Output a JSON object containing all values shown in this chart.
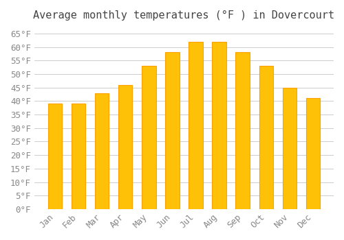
{
  "title": "Average monthly temperatures (°F ) in Dovercourt",
  "months": [
    "Jan",
    "Feb",
    "Mar",
    "Apr",
    "May",
    "Jun",
    "Jul",
    "Aug",
    "Sep",
    "Oct",
    "Nov",
    "Dec"
  ],
  "values": [
    39,
    39,
    43,
    46,
    53,
    58,
    62,
    62,
    58,
    53,
    45,
    41
  ],
  "bar_color_face": "#FFC107",
  "bar_color_edge": "#FFA000",
  "background_color": "#FFFFFF",
  "grid_color": "#CCCCCC",
  "ylim": [
    0,
    67
  ],
  "ytick_step": 5,
  "title_fontsize": 11,
  "tick_fontsize": 9,
  "tick_font_family": "monospace"
}
